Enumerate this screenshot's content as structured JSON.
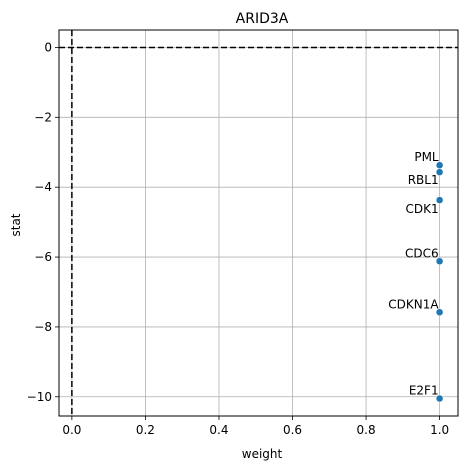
{
  "chart_data": {
    "type": "scatter",
    "title": "ARID3A",
    "xlabel": "weight",
    "ylabel": "stat",
    "xlim": [
      -0.035,
      1.05
    ],
    "ylim": [
      -10.55,
      0.5
    ],
    "x_ticks": [
      0.0,
      0.2,
      0.4,
      0.6,
      0.8,
      1.0
    ],
    "x_tick_labels": [
      "0.0",
      "0.2",
      "0.4",
      "0.6",
      "0.8",
      "1.0"
    ],
    "y_ticks": [
      0,
      -2,
      -4,
      -6,
      -8,
      -10
    ],
    "y_tick_labels": [
      "0",
      "−2",
      "−4",
      "−6",
      "−8",
      "−10"
    ],
    "grid": true,
    "reference_lines": {
      "x": 0,
      "y": 0,
      "style": "dashed",
      "color": "#000000"
    },
    "marker_color": "#1f77b4",
    "points": [
      {
        "label": "PML",
        "x": 1.0,
        "y": -3.37,
        "label_anchor": "end",
        "label_dy": -4
      },
      {
        "label": "RBL1",
        "x": 1.0,
        "y": -3.57,
        "label_anchor": "end",
        "label_dy": 12
      },
      {
        "label": "CDK1",
        "x": 1.0,
        "y": -4.37,
        "label_anchor": "end",
        "label_dy": 13
      },
      {
        "label": "CDC6",
        "x": 1.0,
        "y": -6.12,
        "label_anchor": "end",
        "label_dy": -4
      },
      {
        "label": "CDKN1A",
        "x": 1.0,
        "y": -7.58,
        "label_anchor": "end",
        "label_dy": -4
      },
      {
        "label": "E2F1",
        "x": 1.0,
        "y": -10.05,
        "label_anchor": "end",
        "label_dy": -4
      }
    ]
  }
}
